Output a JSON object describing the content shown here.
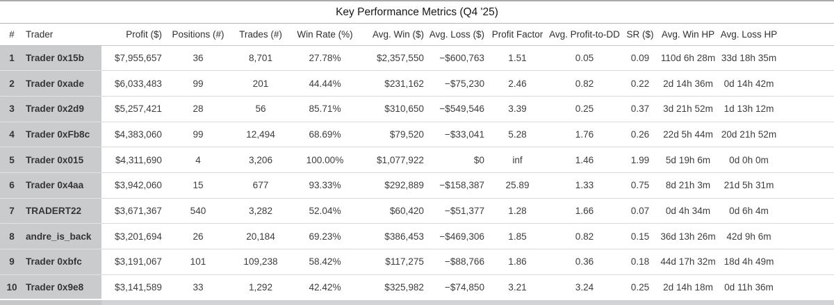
{
  "title": "Key Performance Metrics (Q4 '25)",
  "columns": [
    {
      "key": "rank",
      "label": "#"
    },
    {
      "key": "trader",
      "label": "Trader"
    },
    {
      "key": "profit",
      "label": "Profit ($)"
    },
    {
      "key": "positions",
      "label": "Positions (#)"
    },
    {
      "key": "trades",
      "label": "Trades (#)"
    },
    {
      "key": "win-rate",
      "label": "Win Rate (%)"
    },
    {
      "key": "avg-win",
      "label": "Avg. Win ($)"
    },
    {
      "key": "avg-loss",
      "label": "Avg. Loss ($)"
    },
    {
      "key": "profit-factor",
      "label": "Profit Factor"
    },
    {
      "key": "avg-profit-to-dd",
      "label": "Avg. Profit-to-DD"
    },
    {
      "key": "sr",
      "label": "SR ($)"
    },
    {
      "key": "avg-win-hp",
      "label": "Avg. Win HP"
    },
    {
      "key": "avg-loss-hp",
      "label": "Avg. Loss HP"
    }
  ],
  "rows": [
    {
      "cells": [
        "1",
        "Trader 0x15b",
        "$7,955,657",
        "36",
        "8,701",
        "27.78%",
        "$2,357,550",
        "−$600,763",
        "1.51",
        "0.05",
        "0.09",
        "110d 6h 28m",
        "33d 18h 35m"
      ]
    },
    {
      "cells": [
        "2",
        "Trader 0xade",
        "$6,033,483",
        "99",
        "201",
        "44.44%",
        "$231,162",
        "−$75,230",
        "2.46",
        "0.82",
        "0.22",
        "2d 14h 36m",
        "0d 14h 42m"
      ]
    },
    {
      "cells": [
        "3",
        "Trader 0x2d9",
        "$5,257,421",
        "28",
        "56",
        "85.71%",
        "$310,650",
        "−$549,546",
        "3.39",
        "0.25",
        "0.37",
        "3d 21h 52m",
        "1d 13h 12m"
      ]
    },
    {
      "cells": [
        "4",
        "Trader 0xFb8c",
        "$4,383,060",
        "99",
        "12,494",
        "68.69%",
        "$79,520",
        "−$33,041",
        "5.28",
        "1.76",
        "0.26",
        "22d 5h 44m",
        "20d 21h 52m"
      ]
    },
    {
      "cells": [
        "5",
        "Trader 0x015",
        "$4,311,690",
        "4",
        "3,206",
        "100.00%",
        "$1,077,922",
        "$0",
        "inf",
        "1.46",
        "1.99",
        "5d 19h 6m",
        "0d 0h 0m"
      ]
    },
    {
      "cells": [
        "6",
        "Trader 0x4aa",
        "$3,942,060",
        "15",
        "677",
        "93.33%",
        "$292,889",
        "−$158,387",
        "25.89",
        "1.33",
        "0.75",
        "8d 21h 3m",
        "21d 5h 31m"
      ]
    },
    {
      "cells": [
        "7",
        "TRADERT22",
        "$3,671,367",
        "540",
        "3,282",
        "52.04%",
        "$60,420",
        "−$51,377",
        "1.28",
        "1.66",
        "0.07",
        "0d 4h 34m",
        "0d 6h 4m"
      ]
    },
    {
      "cells": [
        "8",
        "andre_is_back",
        "$3,201,694",
        "26",
        "20,184",
        "69.23%",
        "$386,453",
        "−$469,306",
        "1.85",
        "0.82",
        "0.15",
        "36d 13h 26m",
        "42d 9h 6m"
      ]
    },
    {
      "cells": [
        "9",
        "Trader 0xbfc",
        "$3,191,067",
        "101",
        "109,238",
        "58.42%",
        "$117,275",
        "−$88,766",
        "1.86",
        "0.36",
        "0.18",
        "44d 17h 32m",
        "18d 4h 49m"
      ]
    },
    {
      "cells": [
        "10",
        "Trader 0x9e8",
        "$3,141,589",
        "33",
        "1,292",
        "42.42%",
        "$325,982",
        "−$74,850",
        "3.21",
        "3.24",
        "0.25",
        "2d 14h 18m",
        "0d 11h 36m"
      ]
    }
  ],
  "colors": {
    "row_label_bg": "#cacbcd",
    "row_separator": "#d9d9d9",
    "title_border": "#b3b3b3",
    "header_border": "#c4c4c4",
    "next_row_strip": "#d1d3d6"
  }
}
